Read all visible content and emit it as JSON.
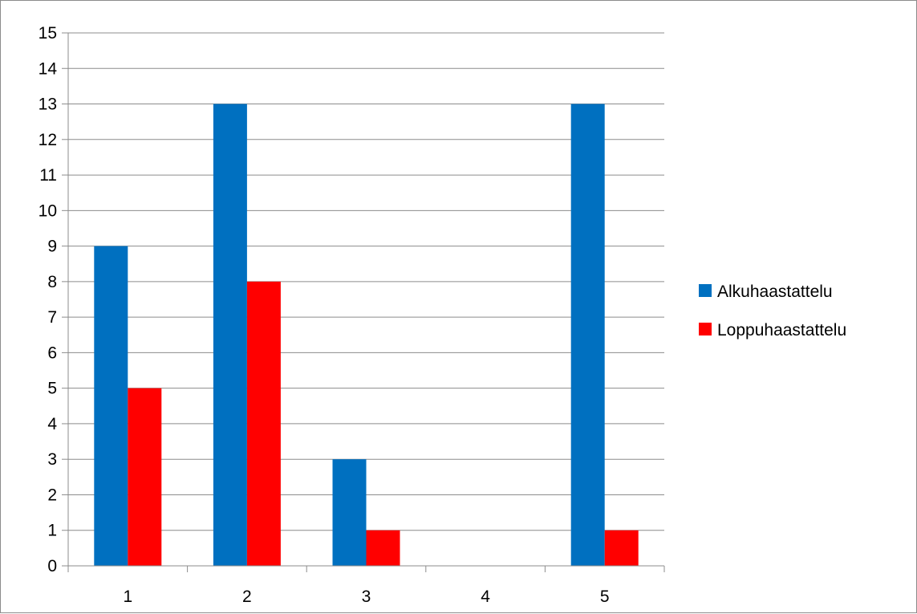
{
  "chart_data": {
    "type": "bar",
    "title": "",
    "xlabel": "",
    "ylabel": "",
    "categories": [
      "1",
      "2",
      "3",
      "4",
      "5"
    ],
    "ylim": [
      0,
      15
    ],
    "yticks": [
      "0",
      "1",
      "2",
      "3",
      "4",
      "5",
      "6",
      "7",
      "8",
      "9",
      "10",
      "11",
      "12",
      "13",
      "14",
      "15"
    ],
    "grid": true,
    "legend_position": "right",
    "series": [
      {
        "name": "Alkuhaastattelu",
        "color": "#0070c0",
        "values": [
          9,
          13,
          3,
          0,
          13
        ]
      },
      {
        "name": "Loppuhaastattelu",
        "color": "#ff0000",
        "values": [
          5,
          8,
          1,
          0,
          1
        ]
      }
    ]
  }
}
